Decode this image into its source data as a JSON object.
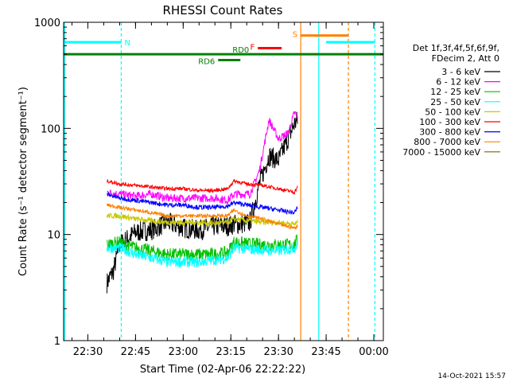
{
  "chart_data": {
    "type": "line",
    "title": "RHESSI Count Rates",
    "xlabel": "Start Time (02-Apr-06 22:22:22)",
    "ylabel": "Count Rate (s⁻¹ detector segment⁻¹)",
    "yscale": "log",
    "ylim": [
      1,
      1000
    ],
    "xlim": [
      "22:22:22",
      "00:03:00"
    ],
    "x_tick_labels": [
      "22:30",
      "22:45",
      "23:00",
      "23:15",
      "23:30",
      "23:45",
      "00:00"
    ],
    "y_tick_labels": [
      "1",
      "10",
      "100",
      "1000"
    ],
    "legend_header": [
      "Det 1f,3f,4f,5f,6f,9f,",
      "FDecim 2, Att 0"
    ],
    "legend_placement": "right",
    "timestamp": "14-Oct-2021 15:57",
    "series": [
      {
        "name": "3 - 6 keV",
        "color": "#000000",
        "x": [
          "22:36",
          "22:38",
          "22:40",
          "22:45",
          "22:50",
          "22:55",
          "23:00",
          "23:05",
          "23:10",
          "23:14",
          "23:16",
          "23:18",
          "23:21",
          "23:24",
          "23:27",
          "23:30",
          "23:33",
          "23:35",
          "23:36"
        ],
        "y": [
          3.5,
          4.5,
          8,
          10.5,
          11,
          13,
          11.5,
          11,
          12,
          12,
          12.5,
          12.5,
          13,
          30,
          55,
          50,
          80,
          110,
          120
        ]
      },
      {
        "name": "6 - 12 keV",
        "color": "#ff00ff",
        "x": [
          "22:36",
          "22:40",
          "22:45",
          "22:50",
          "22:55",
          "23:00",
          "23:05",
          "23:10",
          "23:14",
          "23:16",
          "23:18",
          "23:21",
          "23:24",
          "23:27",
          "23:30",
          "23:33",
          "23:35",
          "23:36"
        ],
        "y": [
          25,
          24,
          23,
          24,
          22,
          22,
          22,
          22,
          21,
          24,
          24,
          24,
          40,
          120,
          80,
          90,
          140,
          130
        ]
      },
      {
        "name": "12 - 25 keV",
        "color": "#00c000",
        "x": [
          "22:36",
          "22:40",
          "22:45",
          "22:50",
          "22:55",
          "23:00",
          "23:05",
          "23:10",
          "23:14",
          "23:16",
          "23:20",
          "23:25",
          "23:30",
          "23:35",
          "23:36"
        ],
        "y": [
          8,
          8.5,
          7.5,
          7,
          6.5,
          6.5,
          6.5,
          6.5,
          6.8,
          8.5,
          8.2,
          8,
          8,
          8,
          9
        ]
      },
      {
        "name": "25 - 50 keV",
        "color": "#00ffff",
        "x": [
          "22:36",
          "22:40",
          "22:45",
          "22:50",
          "22:55",
          "23:00",
          "23:05",
          "23:10",
          "23:14",
          "23:16",
          "23:20",
          "23:25",
          "23:30",
          "23:35",
          "23:36"
        ],
        "y": [
          7.5,
          7.5,
          6.5,
          6,
          5.5,
          5.5,
          5.5,
          5.8,
          6,
          7.5,
          7.3,
          7.2,
          7,
          7.5,
          8
        ]
      },
      {
        "name": "50 - 100 keV",
        "color": "#c8c800",
        "x": [
          "22:36",
          "22:40",
          "22:45",
          "22:50",
          "22:55",
          "23:00",
          "23:05",
          "23:10",
          "23:14",
          "23:16",
          "23:20",
          "23:25",
          "23:30",
          "23:35",
          "23:36"
        ],
        "y": [
          15,
          15,
          14,
          13.5,
          13,
          13,
          13,
          12.8,
          13,
          14,
          13.5,
          13,
          13,
          12.5,
          13
        ]
      },
      {
        "name": "100 - 300 keV",
        "color": "#ff0000",
        "x": [
          "22:36",
          "22:40",
          "22:45",
          "22:50",
          "22:55",
          "23:00",
          "23:05",
          "23:10",
          "23:14",
          "23:16",
          "23:20",
          "23:25",
          "23:30",
          "23:35",
          "23:36"
        ],
        "y": [
          32,
          30,
          29,
          28,
          27,
          27,
          26,
          26,
          27,
          32,
          30,
          29,
          27,
          25,
          28
        ]
      },
      {
        "name": "300 - 800 keV",
        "color": "#0000ff",
        "x": [
          "22:36",
          "22:40",
          "22:45",
          "22:50",
          "22:55",
          "23:00",
          "23:05",
          "23:10",
          "23:14",
          "23:16",
          "23:20",
          "23:25",
          "23:30",
          "23:35",
          "23:36"
        ],
        "y": [
          24,
          22,
          21,
          20,
          19,
          19,
          18,
          18,
          18.5,
          20,
          19,
          18,
          17,
          16,
          18
        ]
      },
      {
        "name": "800 - 7000 keV",
        "color": "#ff8000",
        "x": [
          "22:36",
          "22:40",
          "22:45",
          "22:50",
          "22:55",
          "23:00",
          "23:05",
          "23:10",
          "23:14",
          "23:16",
          "23:20",
          "23:25",
          "23:30",
          "23:35",
          "23:36"
        ],
        "y": [
          19,
          18,
          17,
          16,
          15,
          15,
          15,
          15,
          15,
          17,
          15,
          14,
          12.5,
          11.5,
          12
        ]
      },
      {
        "name": "7000 - 15000 keV",
        "color": "#806000",
        "x": [],
        "y": []
      }
    ],
    "attenuator_and_mode_bars": [
      {
        "label": "N",
        "color": "#00ffff",
        "segments": [
          [
            "22:22:22",
            "22:40:30"
          ],
          [
            "23:45:00",
            "00:00:20"
          ]
        ],
        "y": 650
      },
      {
        "label": "RD6",
        "color": "#008000",
        "segments": [
          [
            "23:11:00",
            "23:18:00"
          ]
        ],
        "y": 440
      },
      {
        "label": "RD0",
        "color": "#008000",
        "segments": [
          [
            "22:22:22",
            "00:03:00"
          ]
        ],
        "y": 500
      },
      {
        "label": "F",
        "color": "#ff0000",
        "segments": [
          [
            "23:23:30",
            "23:31:00"
          ]
        ],
        "y": 570
      },
      {
        "label": "S",
        "color": "#ff8000",
        "segments": [
          [
            "23:37:00",
            "23:52:00"
          ]
        ],
        "y": 750
      }
    ],
    "vertical_markers": [
      {
        "time": "22:22:40",
        "color": "#00ffff",
        "style": "solid"
      },
      {
        "time": "22:40:30",
        "color": "#00ffff",
        "style": "dashed"
      },
      {
        "time": "23:37:00",
        "color": "#ff8000",
        "style": "solid"
      },
      {
        "time": "23:42:40",
        "color": "#00ffff",
        "style": "solid"
      },
      {
        "time": "23:52:00",
        "color": "#ff8000",
        "style": "dashed"
      },
      {
        "time": "00:00:20",
        "color": "#00ffff",
        "style": "dashed"
      }
    ]
  }
}
